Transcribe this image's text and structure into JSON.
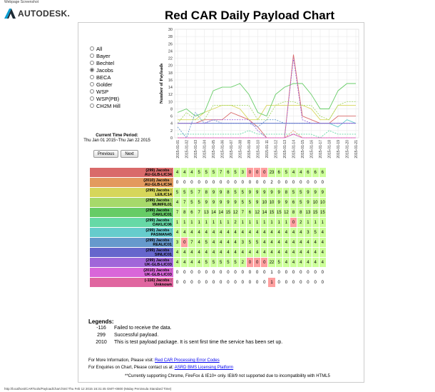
{
  "page_label": "Webpage Screenshot",
  "logo": {
    "text": "AUTODESK."
  },
  "title": "Red CAR Daily Payload Chart",
  "radio_options": [
    {
      "label": "All",
      "selected": false
    },
    {
      "label": "Bayer",
      "selected": false
    },
    {
      "label": "Bechtel",
      "selected": false
    },
    {
      "label": "Jacobs",
      "selected": true
    },
    {
      "label": "BECA",
      "selected": false
    },
    {
      "label": "Golder",
      "selected": false
    },
    {
      "label": "WSP",
      "selected": false
    },
    {
      "label": "WSP(PB)",
      "selected": false
    },
    {
      "label": "CH2M Hill",
      "selected": false
    }
  ],
  "period": {
    "label": "Current Time Period:",
    "value": "Thu Jan 01 2015~Thu Jan 22 2015"
  },
  "buttons": {
    "previous": "Previous",
    "next": "Next"
  },
  "chart_data": {
    "type": "line",
    "ylabel": "Number of Payloads",
    "ylim": [
      0,
      30
    ],
    "yticks": [
      0,
      2,
      4,
      6,
      8,
      10,
      12,
      14,
      16,
      18,
      20,
      22,
      24,
      26,
      28,
      30
    ],
    "x": [
      "2015-01-01",
      "2015-01-02",
      "2015-01-03",
      "2015-01-04",
      "2015-01-05",
      "2015-01-06",
      "2015-01-07",
      "2015-01-08",
      "2015-01-09",
      "2015-01-10",
      "2015-01-11",
      "2015-01-12",
      "2015-01-13",
      "2015-01-14",
      "2015-01-15",
      "2015-01-16",
      "2015-01-17",
      "2015-01-18",
      "2015-01-19",
      "2015-01-20",
      "2015-01-21"
    ],
    "series": [
      {
        "color": "#d96a6a",
        "values": [
          4,
          4,
          4,
          5,
          5,
          5,
          7,
          6,
          5,
          3,
          0,
          0,
          0,
          23,
          6,
          5,
          4,
          4,
          6,
          6,
          6
        ]
      },
      {
        "color": "#e39a5e",
        "values": [
          0,
          0,
          0,
          0,
          0,
          0,
          0,
          0,
          0,
          0,
          0,
          0,
          0,
          2,
          0,
          0,
          0,
          0,
          0,
          0,
          0
        ]
      },
      {
        "color": "#d6d65a",
        "values": [
          5,
          5,
          5,
          7,
          8,
          9,
          9,
          8,
          5,
          5,
          9,
          9,
          9,
          9,
          9,
          8,
          5,
          5,
          9,
          9,
          9
        ]
      },
      {
        "color": "#a6d96a",
        "values": [
          4,
          7,
          5,
          5,
          9,
          9,
          9,
          9,
          9,
          5,
          5,
          9,
          10,
          10,
          9,
          9,
          6,
          5,
          9,
          10,
          10
        ]
      },
      {
        "color": "#66cc66",
        "values": [
          7,
          8,
          6,
          7,
          13,
          14,
          14,
          15,
          12,
          7,
          6,
          12,
          14,
          15,
          15,
          12,
          8,
          8,
          13,
          15,
          15
        ]
      },
      {
        "color": "#66d9a6",
        "values": [
          1,
          1,
          1,
          1,
          1,
          1,
          1,
          1,
          2,
          1,
          1,
          1,
          1,
          1,
          1,
          1,
          0,
          2,
          1,
          1,
          1
        ]
      },
      {
        "color": "#66cccc",
        "values": [
          4,
          4,
          4,
          4,
          4,
          4,
          4,
          4,
          4,
          4,
          4,
          4,
          4,
          4,
          4,
          4,
          4,
          4,
          3,
          5,
          4
        ]
      },
      {
        "color": "#6699cc",
        "values": [
          3,
          0,
          7,
          4,
          5,
          4,
          4,
          4,
          4,
          3,
          5,
          5,
          4,
          4,
          4,
          4,
          4,
          4,
          4,
          4,
          4
        ]
      },
      {
        "color": "#6666cc",
        "values": [
          4,
          4,
          4,
          4,
          4,
          4,
          4,
          4,
          4,
          4,
          4,
          4,
          4,
          4,
          4,
          4,
          4,
          4,
          4,
          4,
          4
        ]
      },
      {
        "color": "#a066d9",
        "values": [
          4,
          4,
          4,
          4,
          5,
          5,
          5,
          5,
          5,
          2,
          0,
          0,
          0,
          22,
          5,
          4,
          4,
          4,
          4,
          4,
          4
        ]
      },
      {
        "color": "#d966d9",
        "values": [
          0,
          0,
          0,
          0,
          0,
          0,
          0,
          0,
          0,
          0,
          0,
          0,
          0,
          1,
          0,
          0,
          0,
          0,
          0,
          0,
          0
        ]
      },
      {
        "color": "#e066a0",
        "values": [
          0,
          0,
          0,
          0,
          0,
          0,
          0,
          0,
          0,
          0,
          0,
          0,
          0,
          1,
          0,
          0,
          0,
          0,
          0,
          0,
          0
        ]
      }
    ]
  },
  "table_rows": [
    {
      "code": "(299) Jacobs :",
      "server": "AU-GLB-LIC34",
      "color": "#d96a6a",
      "cells": [
        4,
        4,
        4,
        5,
        5,
        5,
        7,
        6,
        5,
        3,
        0,
        0,
        0,
        23,
        6,
        5,
        4,
        4,
        6,
        6,
        6
      ],
      "flags": [
        0,
        0,
        0,
        0,
        0,
        0,
        0,
        0,
        0,
        0,
        1,
        1,
        1,
        0,
        0,
        0,
        0,
        0,
        0,
        0,
        0
      ]
    },
    {
      "code": "(2010) Jacobs :",
      "server": "AU-GLB-LIC34",
      "color": "#e39a5e",
      "cells": [
        0,
        0,
        0,
        0,
        0,
        0,
        0,
        0,
        0,
        0,
        0,
        0,
        0,
        2,
        0,
        0,
        0,
        0,
        0,
        0,
        0
      ],
      "flags": [
        2,
        2,
        2,
        2,
        2,
        2,
        2,
        2,
        2,
        2,
        2,
        2,
        2,
        2,
        2,
        2,
        2,
        2,
        2,
        2,
        2
      ]
    },
    {
      "code": "(299) Jacobs :",
      "server": "LEILIC14",
      "color": "#d6d65a",
      "cells": [
        5,
        5,
        5,
        7,
        8,
        9,
        9,
        8,
        5,
        5,
        9,
        9,
        9,
        9,
        9,
        8,
        5,
        5,
        9,
        9,
        9
      ],
      "flags": [
        0,
        0,
        0,
        0,
        0,
        0,
        0,
        0,
        0,
        0,
        0,
        0,
        0,
        0,
        0,
        0,
        0,
        0,
        0,
        0,
        0
      ]
    },
    {
      "code": "(299) Jacobs :",
      "server": "MUMFIL01",
      "color": "#a6d96a",
      "cells": [
        4,
        7,
        5,
        5,
        9,
        9,
        9,
        9,
        9,
        5,
        5,
        9,
        10,
        10,
        9,
        9,
        6,
        5,
        9,
        10,
        10
      ],
      "flags": [
        0,
        0,
        0,
        0,
        0,
        0,
        0,
        0,
        0,
        0,
        0,
        0,
        0,
        0,
        0,
        0,
        0,
        0,
        0,
        0,
        0
      ]
    },
    {
      "code": "(299) Jacobs :",
      "server": "OAKLIC01",
      "color": "#66cc66",
      "cells": [
        7,
        8,
        6,
        7,
        13,
        14,
        14,
        15,
        12,
        7,
        6,
        12,
        14,
        15,
        15,
        12,
        8,
        8,
        13,
        15,
        15
      ],
      "flags": [
        0,
        0,
        0,
        0,
        0,
        0,
        0,
        0,
        0,
        0,
        0,
        0,
        0,
        0,
        0,
        0,
        0,
        0,
        0,
        0,
        0
      ]
    },
    {
      "code": "(299) Jacobs :",
      "server": "OAKLIC06",
      "color": "#66d9a6",
      "cells": [
        1,
        1,
        1,
        1,
        1,
        1,
        1,
        1,
        2,
        1,
        1,
        1,
        1,
        1,
        1,
        1,
        0,
        2,
        1,
        1,
        1
      ],
      "flags": [
        0,
        0,
        0,
        0,
        0,
        0,
        0,
        0,
        0,
        0,
        0,
        0,
        0,
        0,
        0,
        0,
        1,
        0,
        0,
        0,
        0
      ]
    },
    {
      "code": "(299) Jacobs :",
      "server": "PASMAN45",
      "color": "#66cccc",
      "cells": [
        4,
        4,
        4,
        4,
        4,
        4,
        4,
        4,
        4,
        4,
        4,
        4,
        4,
        4,
        4,
        4,
        4,
        4,
        3,
        5,
        4
      ],
      "flags": [
        0,
        0,
        0,
        0,
        0,
        0,
        0,
        0,
        0,
        0,
        0,
        0,
        0,
        0,
        0,
        0,
        0,
        0,
        0,
        0,
        0
      ]
    },
    {
      "code": "(299) Jacobs :",
      "server": "REALIC01",
      "color": "#6699cc",
      "cells": [
        3,
        0,
        7,
        4,
        5,
        4,
        4,
        4,
        4,
        3,
        5,
        5,
        4,
        4,
        4,
        4,
        4,
        4,
        4,
        4,
        4
      ],
      "flags": [
        0,
        1,
        0,
        0,
        0,
        0,
        0,
        0,
        0,
        0,
        0,
        0,
        0,
        0,
        0,
        0,
        0,
        0,
        0,
        0,
        0
      ]
    },
    {
      "code": "(299) Jacobs :",
      "server": "SINLIC01",
      "color": "#6666cc",
      "cells": [
        4,
        4,
        4,
        4,
        4,
        4,
        4,
        4,
        4,
        4,
        4,
        4,
        4,
        4,
        4,
        4,
        4,
        4,
        4,
        4,
        4
      ],
      "flags": [
        0,
        0,
        0,
        0,
        0,
        0,
        0,
        0,
        0,
        0,
        0,
        0,
        0,
        0,
        0,
        0,
        0,
        0,
        0,
        0,
        0
      ]
    },
    {
      "code": "(299) Jacobs :",
      "server": "UK-GLB-LIC03",
      "color": "#a066d9",
      "cells": [
        4,
        4,
        4,
        4,
        5,
        5,
        5,
        5,
        5,
        2,
        0,
        0,
        0,
        22,
        5,
        4,
        4,
        4,
        4,
        4,
        4
      ],
      "flags": [
        0,
        0,
        0,
        0,
        0,
        0,
        0,
        0,
        0,
        0,
        1,
        1,
        1,
        0,
        0,
        0,
        0,
        0,
        0,
        0,
        0
      ]
    },
    {
      "code": "(2010) Jacobs :",
      "server": "UK-GLB-LIC03",
      "color": "#d966d9",
      "cells": [
        0,
        0,
        0,
        0,
        0,
        0,
        0,
        0,
        0,
        0,
        0,
        0,
        0,
        1,
        0,
        0,
        0,
        0,
        0,
        0,
        0
      ],
      "flags": [
        2,
        2,
        2,
        2,
        2,
        2,
        2,
        2,
        2,
        2,
        2,
        2,
        2,
        2,
        2,
        2,
        2,
        2,
        2,
        2,
        2
      ]
    },
    {
      "code": "(-116) Jacobs :",
      "server": "Unknown",
      "color": "#e066a0",
      "cells": [
        0,
        0,
        0,
        0,
        0,
        0,
        0,
        0,
        0,
        0,
        0,
        0,
        0,
        1,
        0,
        0,
        0,
        0,
        0,
        0,
        0
      ],
      "flags": [
        2,
        2,
        2,
        2,
        2,
        2,
        2,
        2,
        2,
        2,
        2,
        2,
        2,
        1,
        2,
        2,
        2,
        2,
        2,
        2,
        2
      ]
    }
  ],
  "legends": {
    "heading": "Legends:",
    "items": [
      {
        "code": "-116",
        "text": "Failed to receive the data."
      },
      {
        "code": "299",
        "text": "Successful payload."
      },
      {
        "code": "2010",
        "text": "This is test payload package. It is sent first time the service has been set up."
      }
    ]
  },
  "info": {
    "line1_text": "For More Information, Please visit:",
    "line1_link": "Red CAR Processing Error Codes",
    "line2_text": "For Enquiries on Chart, Please contact us at:",
    "line2_link": "ASRD BMS Licensing Platform"
  },
  "note": "**Currently supporting Chrome, FireFox & IE10+ only. IE8/9 not supported due to incompatibility with HTML5",
  "status": "http://localhost/CARTools/PayloadChart.html Thu Feb 12 2015 16:31:45 GMT+0800 (Malay Peninsula Standard Time)"
}
